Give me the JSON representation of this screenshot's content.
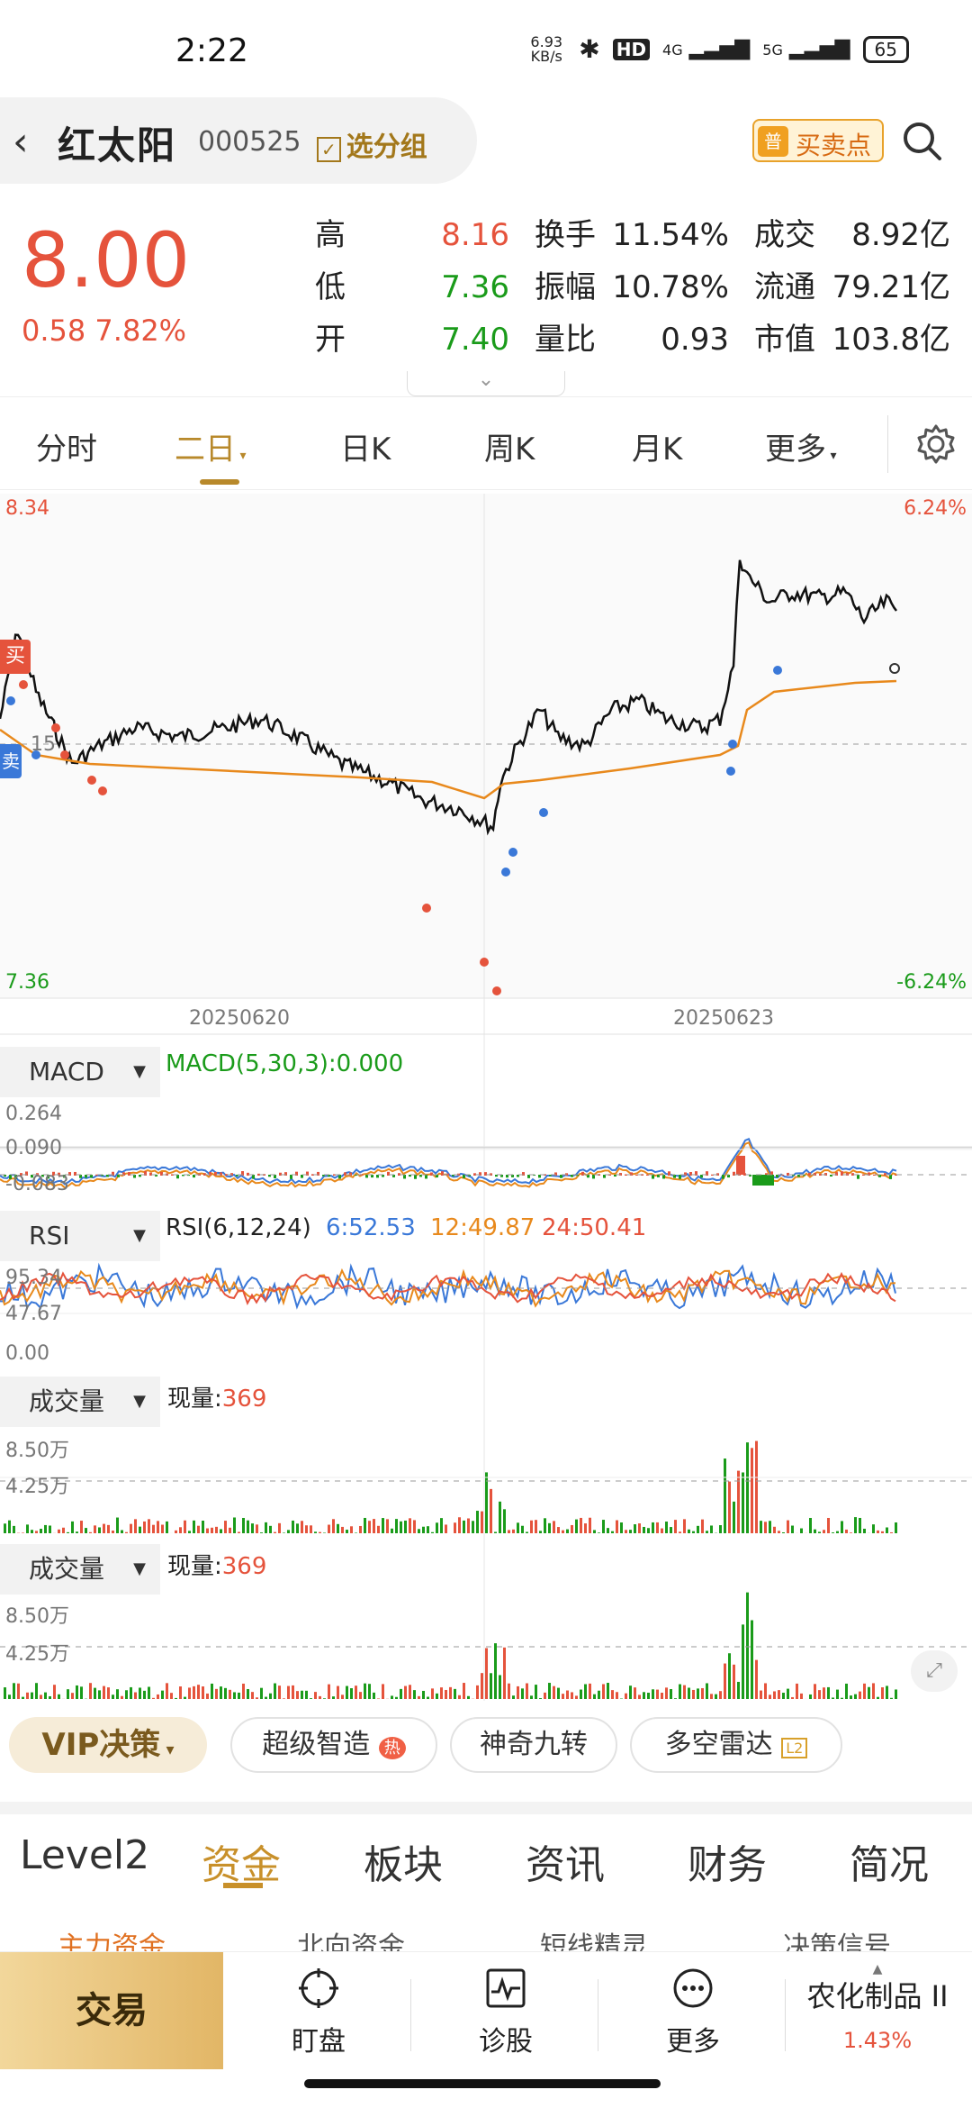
{
  "status": {
    "time": "2:22",
    "netspeed": "6.93\nKB/s",
    "hd": "HD",
    "net4g": "4G",
    "net5g": "5G",
    "battery": "65"
  },
  "header": {
    "stock_name": "红太阳",
    "stock_code": "000525",
    "group_label": "选分组",
    "buysell_label": "买卖点",
    "pu_badge": "普"
  },
  "quote": {
    "price": "8.00",
    "change": "0.58 7.82%",
    "high_label": "高",
    "high": "8.16",
    "low_label": "低",
    "low": "7.36",
    "open_label": "开",
    "open": "7.40",
    "turnover_label": "换手",
    "turnover": "11.54%",
    "amplitude_label": "振幅",
    "amplitude": "10.78%",
    "vol_ratio_label": "量比",
    "vol_ratio": "0.93",
    "deal_label": "成交",
    "deal": "8.92亿",
    "float_label": "流通",
    "float": "79.21亿",
    "mcap_label": "市值",
    "mcap": "103.8亿"
  },
  "tabs": [
    "分时",
    "二日",
    "日K",
    "周K",
    "月K",
    "更多"
  ],
  "chart": {
    "price_top": "8.34",
    "price_bottom": "7.36",
    "pct_top": "6.24%",
    "pct_bottom": "-6.24%",
    "date1": "20250620",
    "date2": "20250623",
    "ref_label": "15",
    "buy_tag": "买",
    "sell_tag": "卖"
  },
  "macd": {
    "name": "MACD",
    "params": "MACD(5,30,3):0.000",
    "y1": "0.264",
    "y2": "0.090",
    "y3": "-0.083"
  },
  "rsi": {
    "name": "RSI",
    "params": "RSI(6,12,24)",
    "v6": "6:52.53",
    "v12": "12:49.87",
    "v24": "24:50.41",
    "y1": "95.34",
    "y2": "47.67",
    "y3": "0.00"
  },
  "vol1": {
    "name": "成交量",
    "now_label": "现量:",
    "now": "369",
    "y1": "8.50万",
    "y2": "4.25万"
  },
  "vol2": {
    "name": "成交量",
    "now_label": "现量:",
    "now": "369",
    "y1": "8.50万",
    "y2": "4.25万"
  },
  "strategy": {
    "vip": "VIP决策",
    "s1": "超级智造",
    "s1_badge": "热",
    "s2": "神奇九转",
    "s3": "多空雷达",
    "s3_badge": "L2"
  },
  "bottom_tabs": [
    "Level2",
    "资金",
    "板块",
    "资讯",
    "财务",
    "简况"
  ],
  "sub_tabs": [
    "主力资金",
    "北向资金",
    "短线精灵",
    "决策信号"
  ],
  "nav": {
    "trade": "交易",
    "watch": "盯盘",
    "diagnose": "诊股",
    "more": "更多",
    "sector_name": "农化制品 II",
    "sector_change": "1.43%"
  },
  "colors": {
    "up": "#e5533c",
    "down": "#1a9b1a",
    "avg_line": "#e8891c",
    "gold": "#b8892b"
  }
}
